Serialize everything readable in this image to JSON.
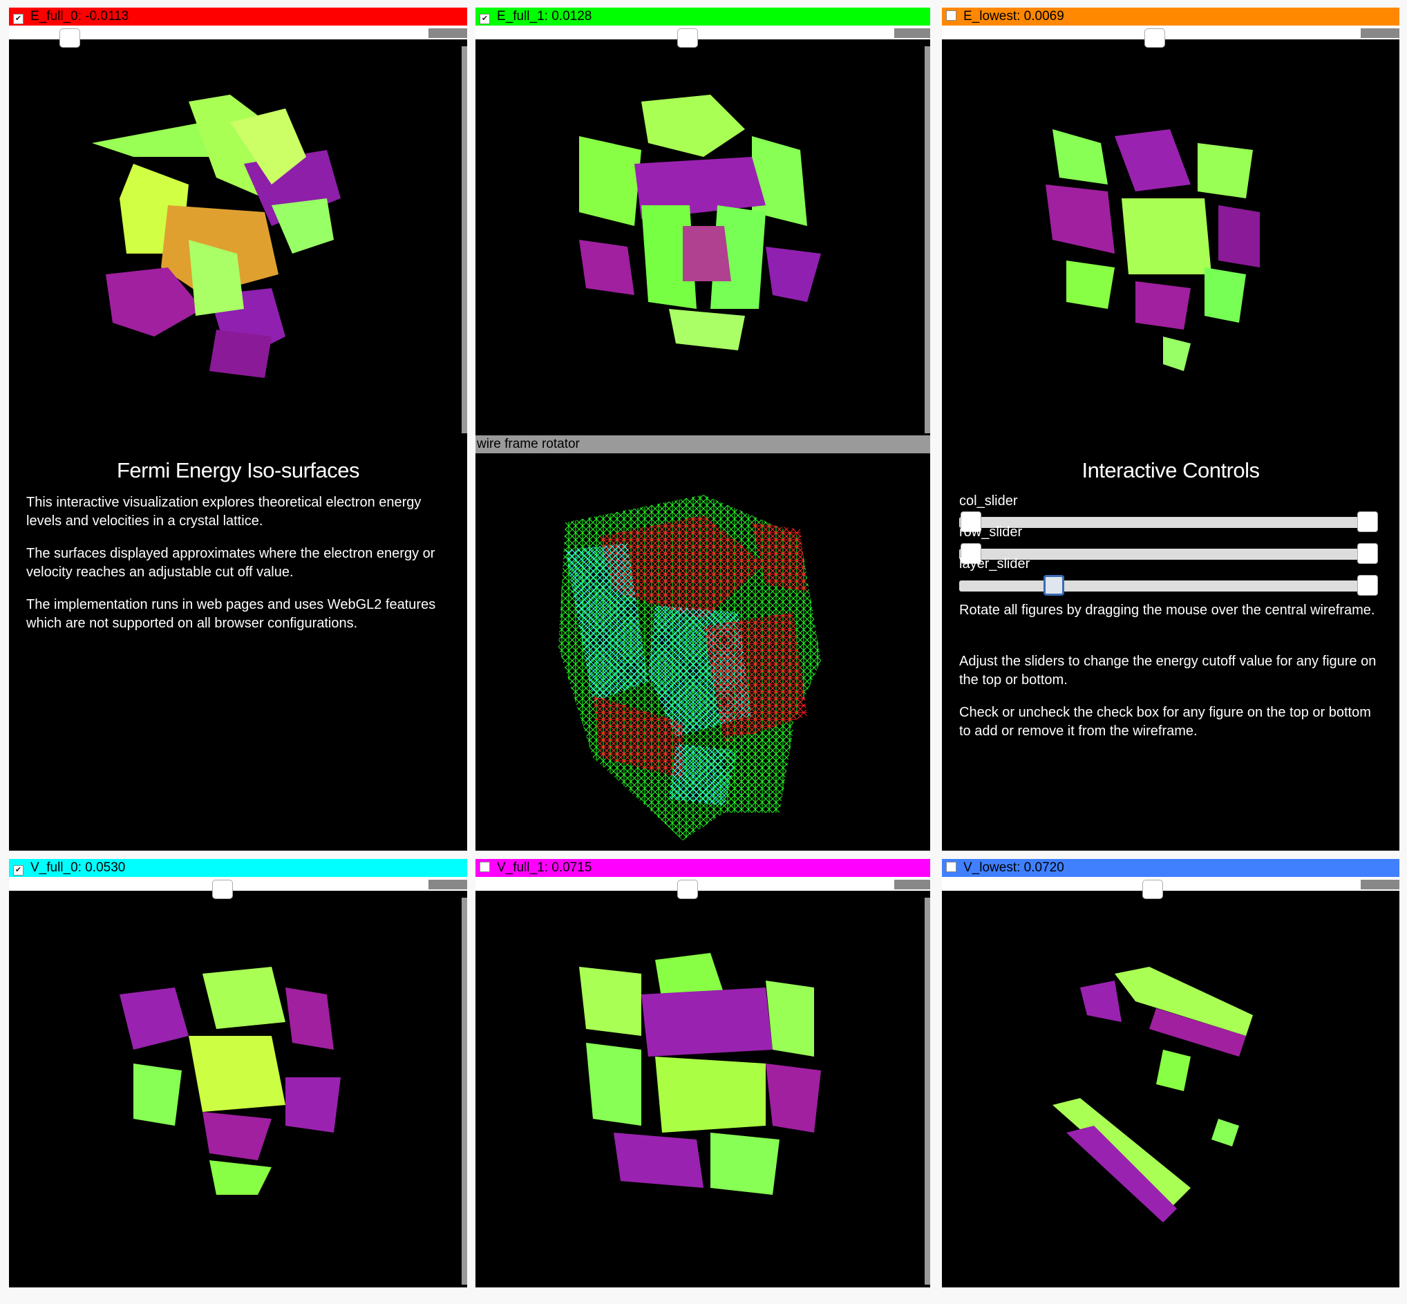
{
  "panels": {
    "e_full_0": {
      "label": "E_full_0: -0.0113",
      "checked": "✔",
      "color": "#ff0000"
    },
    "e_full_1": {
      "label": "E_full_1: 0.0128",
      "checked": "✔",
      "color": "#00ff00"
    },
    "e_lowest": {
      "label": "E_lowest: 0.0069",
      "checked": "",
      "color": "#ff8800"
    },
    "v_full_0": {
      "label": "V_full_0: 0.0530",
      "checked": "✔",
      "color": "#00ffff"
    },
    "v_full_1": {
      "label": "V_full_1: 0.0715",
      "checked": "",
      "color": "#ff00ff"
    },
    "v_lowest": {
      "label": "V_lowest: 0.0720",
      "checked": "",
      "color": "#4080ff"
    }
  },
  "wireframe": {
    "label": "wire frame rotator"
  },
  "intro": {
    "title": "Fermi Energy Iso-surfaces",
    "p1": "This interactive visualization explores theoretical electron energy levels and velocities in a crystal lattice.",
    "p2": "The surfaces displayed approximates where the electron energy or velocity reaches an adjustable cut off value.",
    "p3": "The implementation runs in web pages and uses WebGL2 features which are not supported on all browser configurations."
  },
  "controls": {
    "title": "Interactive Controls",
    "col_label": "col_slider",
    "row_label": "row_slider",
    "layer_label": "layer_slider",
    "p1": "Rotate all figures by dragging the mouse over the central wireframe.",
    "p2": "Adjust the sliders to change the energy cutoff value for any figure on the top or bottom.",
    "p3": "Check or uncheck the check box for any figure on the top or bottom to add or remove it from the wireframe."
  },
  "icons": {
    "checkbox": "checkbox-icon"
  }
}
